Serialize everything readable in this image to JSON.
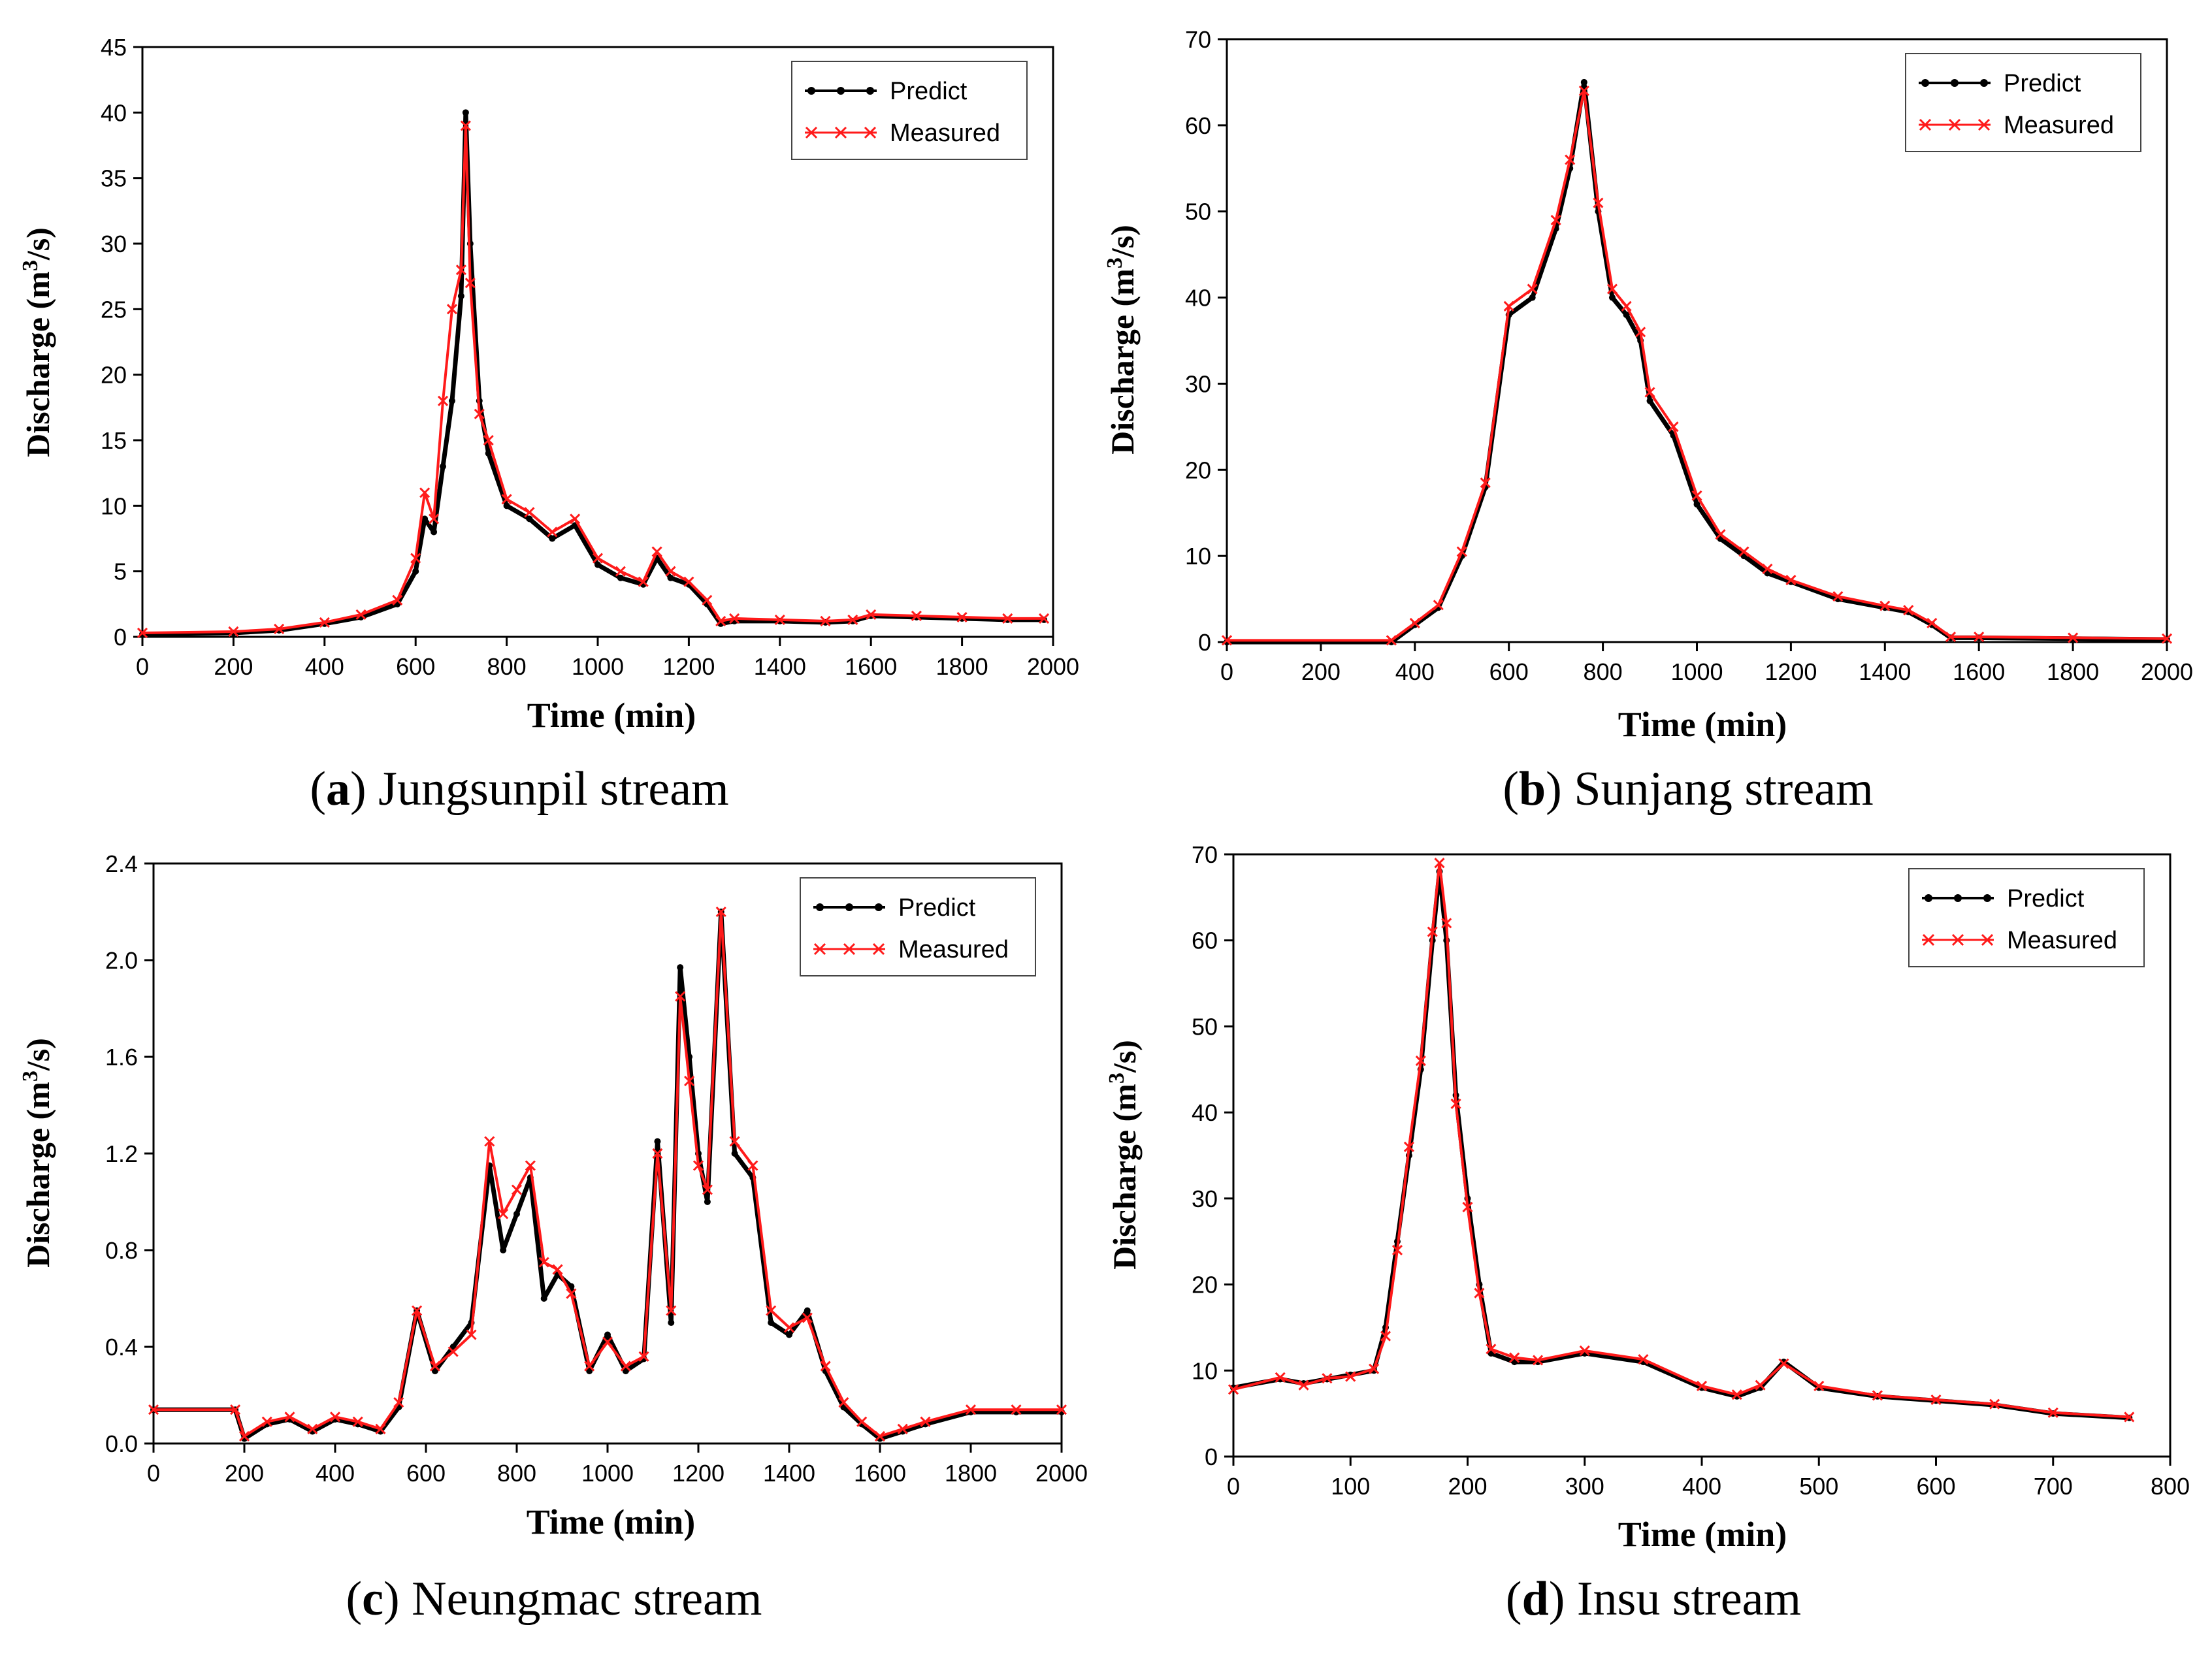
{
  "figure": {
    "series_colors": {
      "predict": "#000000",
      "measured": "#ff1a1a"
    }
  },
  "chart_data": [
    {
      "id": "a",
      "type": "line",
      "caption_letter": "a",
      "caption_text": ") Jungsunpil stream",
      "xlabel": "Time  (min)",
      "ylabel_prefix": "Discharge  (m",
      "ylabel_sup": "3",
      "ylabel_suffix": "/s)",
      "xlim": [
        0,
        2000
      ],
      "ylim": [
        0,
        45
      ],
      "xticks": [
        0,
        200,
        400,
        600,
        800,
        1000,
        1200,
        1400,
        1600,
        1800,
        2000
      ],
      "yticks": [
        0,
        5,
        10,
        15,
        20,
        25,
        30,
        35,
        40,
        45
      ],
      "ytick_labels": [
        "0",
        "5",
        "10",
        "15",
        "20",
        "25",
        "30",
        "35",
        "40",
        "45"
      ],
      "legend": [
        "Predict",
        "Measured"
      ],
      "series": [
        {
          "name": "Predict",
          "x": [
            0,
            200,
            300,
            400,
            480,
            560,
            600,
            620,
            640,
            660,
            680,
            700,
            710,
            720,
            740,
            760,
            800,
            850,
            900,
            950,
            1000,
            1050,
            1100,
            1130,
            1160,
            1200,
            1240,
            1270,
            1300,
            1400,
            1500,
            1560,
            1600,
            1700,
            1800,
            1900,
            1980
          ],
          "y": [
            0.2,
            0.3,
            0.5,
            1,
            1.5,
            2.5,
            5,
            9,
            8,
            13,
            18,
            26,
            40,
            30,
            18,
            14,
            10,
            9,
            7.5,
            8.5,
            5.5,
            4.5,
            4,
            6,
            4.5,
            4,
            2.5,
            1,
            1.2,
            1.2,
            1.1,
            1.2,
            1.6,
            1.5,
            1.4,
            1.3,
            1.3
          ]
        },
        {
          "name": "Measured",
          "x": [
            0,
            200,
            300,
            400,
            480,
            560,
            600,
            620,
            640,
            660,
            680,
            700,
            710,
            720,
            740,
            760,
            800,
            850,
            900,
            950,
            1000,
            1050,
            1100,
            1130,
            1160,
            1200,
            1240,
            1270,
            1300,
            1400,
            1500,
            1560,
            1600,
            1700,
            1800,
            1900,
            1980
          ],
          "y": [
            0.3,
            0.4,
            0.6,
            1.1,
            1.7,
            2.8,
            6,
            11,
            9,
            18,
            25,
            28,
            39,
            27,
            17,
            15,
            10.5,
            9.5,
            8,
            9,
            6,
            5,
            4.2,
            6.5,
            5,
            4.2,
            2.8,
            1.2,
            1.4,
            1.3,
            1.2,
            1.3,
            1.7,
            1.6,
            1.5,
            1.4,
            1.4
          ]
        }
      ]
    },
    {
      "id": "b",
      "type": "line",
      "caption_letter": "b",
      "caption_text": ") Sunjang stream",
      "xlabel": "Time  (min)",
      "ylabel_prefix": "Discharge  (m",
      "ylabel_sup": "3",
      "ylabel_suffix": "/s)",
      "xlim": [
        0,
        2000
      ],
      "ylim": [
        0,
        70
      ],
      "xticks": [
        0,
        200,
        400,
        600,
        800,
        1000,
        1200,
        1400,
        1600,
        1800,
        2000
      ],
      "yticks": [
        0,
        10,
        20,
        30,
        40,
        50,
        60,
        70
      ],
      "ytick_labels": [
        "0",
        "10",
        "20",
        "30",
        "40",
        "50",
        "60",
        "70"
      ],
      "legend": [
        "Predict",
        "Measured"
      ],
      "series": [
        {
          "name": "Predict",
          "x": [
            0,
            350,
            400,
            450,
            500,
            550,
            600,
            650,
            700,
            730,
            760,
            790,
            820,
            850,
            880,
            900,
            950,
            1000,
            1050,
            1100,
            1150,
            1200,
            1300,
            1400,
            1450,
            1500,
            1540,
            1600,
            1800,
            2000
          ],
          "y": [
            0,
            0,
            2,
            4,
            10,
            18,
            38,
            40,
            48,
            55,
            65,
            50,
            40,
            38,
            35,
            28,
            24,
            16,
            12,
            10,
            8,
            7,
            5,
            4,
            3.5,
            2,
            0.5,
            0.5,
            0.4,
            0.3
          ]
        },
        {
          "name": "Measured",
          "x": [
            0,
            350,
            400,
            450,
            500,
            550,
            600,
            650,
            700,
            730,
            760,
            790,
            820,
            850,
            880,
            900,
            950,
            1000,
            1050,
            1100,
            1150,
            1200,
            1300,
            1400,
            1450,
            1500,
            1540,
            1600,
            1800,
            2000
          ],
          "y": [
            0.2,
            0.2,
            2.2,
            4.3,
            10.5,
            18.5,
            39,
            41,
            49,
            56,
            64,
            51,
            41,
            39,
            36,
            29,
            25,
            17,
            12.5,
            10.5,
            8.5,
            7.2,
            5.3,
            4.2,
            3.7,
            2.2,
            0.6,
            0.6,
            0.5,
            0.4
          ]
        }
      ]
    },
    {
      "id": "c",
      "type": "line",
      "caption_letter": "c",
      "caption_text": ") Neungmac stream",
      "xlabel": "Time  (min)",
      "ylabel_prefix": "Discharge  (m",
      "ylabel_sup": "3",
      "ylabel_suffix": "/s)",
      "xlim": [
        0,
        2000
      ],
      "ylim": [
        0,
        2.4
      ],
      "xticks": [
        0,
        200,
        400,
        600,
        800,
        1000,
        1200,
        1400,
        1600,
        1800,
        2000
      ],
      "yticks": [
        0,
        0.4,
        0.8,
        1.2,
        1.6,
        2.0,
        2.4
      ],
      "ytick_labels": [
        "0.0",
        "0.4",
        "0.8",
        "1.2",
        "1.6",
        "2.0",
        "2.4"
      ],
      "legend": [
        "Predict",
        "Measured"
      ],
      "series": [
        {
          "name": "Predict",
          "x": [
            0,
            180,
            200,
            250,
            300,
            350,
            400,
            450,
            500,
            540,
            580,
            620,
            660,
            700,
            740,
            770,
            800,
            830,
            860,
            890,
            920,
            960,
            1000,
            1040,
            1080,
            1110,
            1140,
            1160,
            1180,
            1200,
            1220,
            1250,
            1280,
            1320,
            1360,
            1400,
            1440,
            1480,
            1520,
            1560,
            1600,
            1650,
            1700,
            1800,
            1900,
            2000
          ],
          "y": [
            0.14,
            0.14,
            0.02,
            0.08,
            0.1,
            0.05,
            0.1,
            0.08,
            0.05,
            0.15,
            0.55,
            0.3,
            0.4,
            0.5,
            1.15,
            0.8,
            0.95,
            1.1,
            0.6,
            0.7,
            0.65,
            0.3,
            0.45,
            0.3,
            0.35,
            1.25,
            0.5,
            1.97,
            1.6,
            1.2,
            1.0,
            2.2,
            1.2,
            1.1,
            0.5,
            0.45,
            0.55,
            0.3,
            0.15,
            0.08,
            0.02,
            0.05,
            0.08,
            0.13,
            0.13,
            0.13
          ]
        },
        {
          "name": "Measured",
          "x": [
            0,
            180,
            200,
            250,
            300,
            350,
            400,
            450,
            500,
            540,
            580,
            620,
            660,
            700,
            740,
            770,
            800,
            830,
            860,
            890,
            920,
            960,
            1000,
            1040,
            1080,
            1110,
            1140,
            1160,
            1180,
            1200,
            1220,
            1250,
            1280,
            1320,
            1360,
            1400,
            1440,
            1480,
            1520,
            1560,
            1600,
            1650,
            1700,
            1800,
            1900,
            2000
          ],
          "y": [
            0.14,
            0.14,
            0.03,
            0.09,
            0.11,
            0.06,
            0.11,
            0.09,
            0.06,
            0.17,
            0.55,
            0.32,
            0.38,
            0.45,
            1.25,
            0.95,
            1.05,
            1.15,
            0.75,
            0.72,
            0.62,
            0.32,
            0.42,
            0.32,
            0.36,
            1.2,
            0.55,
            1.85,
            1.5,
            1.15,
            1.05,
            2.2,
            1.25,
            1.15,
            0.55,
            0.48,
            0.52,
            0.32,
            0.17,
            0.09,
            0.03,
            0.06,
            0.09,
            0.14,
            0.14,
            0.14
          ]
        }
      ]
    },
    {
      "id": "d",
      "type": "line",
      "caption_letter": "d",
      "caption_text": ") Insu stream",
      "xlabel": "Time  (min)",
      "ylabel_prefix": "Discharge  (m",
      "ylabel_sup": "3",
      "ylabel_suffix": "/s)",
      "xlim": [
        0,
        800
      ],
      "ylim": [
        0,
        70
      ],
      "xticks": [
        0,
        100,
        200,
        300,
        400,
        500,
        600,
        700,
        800
      ],
      "yticks": [
        0,
        10,
        20,
        30,
        40,
        50,
        60,
        70
      ],
      "ytick_labels": [
        "0",
        "10",
        "20",
        "30",
        "40",
        "50",
        "60",
        "70"
      ],
      "legend": [
        "Predict",
        "Measured"
      ],
      "series": [
        {
          "name": "Predict",
          "x": [
            0,
            40,
            60,
            80,
            100,
            120,
            130,
            140,
            150,
            160,
            170,
            176,
            182,
            190,
            200,
            210,
            220,
            240,
            260,
            300,
            350,
            400,
            430,
            450,
            470,
            500,
            550,
            600,
            650,
            700,
            765
          ],
          "y": [
            8,
            9,
            8.5,
            9,
            9.5,
            10,
            15,
            25,
            35,
            45,
            60,
            68,
            60,
            42,
            30,
            20,
            12,
            11,
            11,
            12,
            11,
            8,
            7,
            8,
            11,
            8,
            7,
            6.5,
            6,
            5,
            4.5
          ]
        },
        {
          "name": "Measured",
          "x": [
            0,
            40,
            60,
            80,
            100,
            120,
            130,
            140,
            150,
            160,
            170,
            176,
            182,
            190,
            200,
            210,
            220,
            240,
            260,
            300,
            350,
            400,
            430,
            450,
            470,
            500,
            550,
            600,
            650,
            700,
            765
          ],
          "y": [
            7.8,
            9.2,
            8.3,
            9.1,
            9.3,
            10.2,
            14,
            24,
            36,
            46,
            61,
            69,
            62,
            41,
            29,
            19,
            12.5,
            11.5,
            11.2,
            12.3,
            11.3,
            8.2,
            7.2,
            8.3,
            10.8,
            8.2,
            7.1,
            6.6,
            6.1,
            5.1,
            4.6
          ]
        }
      ]
    }
  ]
}
